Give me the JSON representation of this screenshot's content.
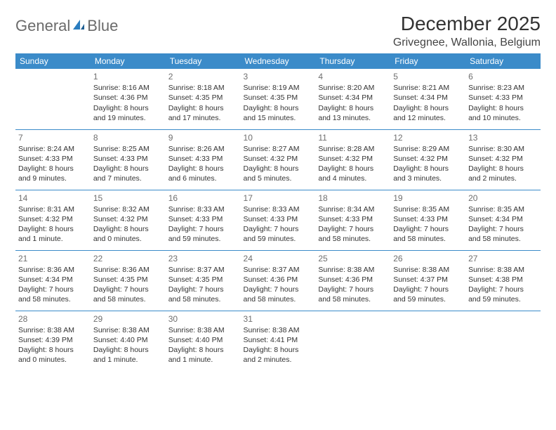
{
  "brand": {
    "word1": "General",
    "word2": "Blue"
  },
  "header": {
    "title": "December 2025",
    "location": "Grivegnee, Wallonia, Belgium"
  },
  "colors": {
    "header_bg": "#3b8bc9",
    "header_text": "#ffffff",
    "sep_line": "#3b8bc9",
    "logo_gray": "#6b6b6b",
    "logo_blue": "#2a7dbf"
  },
  "days": [
    "Sunday",
    "Monday",
    "Tuesday",
    "Wednesday",
    "Thursday",
    "Friday",
    "Saturday"
  ],
  "weeks": [
    [
      {
        "n": "",
        "l1": "",
        "l2": "",
        "l3": "",
        "l4": ""
      },
      {
        "n": "1",
        "l1": "Sunrise: 8:16 AM",
        "l2": "Sunset: 4:36 PM",
        "l3": "Daylight: 8 hours",
        "l4": "and 19 minutes."
      },
      {
        "n": "2",
        "l1": "Sunrise: 8:18 AM",
        "l2": "Sunset: 4:35 PM",
        "l3": "Daylight: 8 hours",
        "l4": "and 17 minutes."
      },
      {
        "n": "3",
        "l1": "Sunrise: 8:19 AM",
        "l2": "Sunset: 4:35 PM",
        "l3": "Daylight: 8 hours",
        "l4": "and 15 minutes."
      },
      {
        "n": "4",
        "l1": "Sunrise: 8:20 AM",
        "l2": "Sunset: 4:34 PM",
        "l3": "Daylight: 8 hours",
        "l4": "and 13 minutes."
      },
      {
        "n": "5",
        "l1": "Sunrise: 8:21 AM",
        "l2": "Sunset: 4:34 PM",
        "l3": "Daylight: 8 hours",
        "l4": "and 12 minutes."
      },
      {
        "n": "6",
        "l1": "Sunrise: 8:23 AM",
        "l2": "Sunset: 4:33 PM",
        "l3": "Daylight: 8 hours",
        "l4": "and 10 minutes."
      }
    ],
    [
      {
        "n": "7",
        "l1": "Sunrise: 8:24 AM",
        "l2": "Sunset: 4:33 PM",
        "l3": "Daylight: 8 hours",
        "l4": "and 9 minutes."
      },
      {
        "n": "8",
        "l1": "Sunrise: 8:25 AM",
        "l2": "Sunset: 4:33 PM",
        "l3": "Daylight: 8 hours",
        "l4": "and 7 minutes."
      },
      {
        "n": "9",
        "l1": "Sunrise: 8:26 AM",
        "l2": "Sunset: 4:33 PM",
        "l3": "Daylight: 8 hours",
        "l4": "and 6 minutes."
      },
      {
        "n": "10",
        "l1": "Sunrise: 8:27 AM",
        "l2": "Sunset: 4:32 PM",
        "l3": "Daylight: 8 hours",
        "l4": "and 5 minutes."
      },
      {
        "n": "11",
        "l1": "Sunrise: 8:28 AM",
        "l2": "Sunset: 4:32 PM",
        "l3": "Daylight: 8 hours",
        "l4": "and 4 minutes."
      },
      {
        "n": "12",
        "l1": "Sunrise: 8:29 AM",
        "l2": "Sunset: 4:32 PM",
        "l3": "Daylight: 8 hours",
        "l4": "and 3 minutes."
      },
      {
        "n": "13",
        "l1": "Sunrise: 8:30 AM",
        "l2": "Sunset: 4:32 PM",
        "l3": "Daylight: 8 hours",
        "l4": "and 2 minutes."
      }
    ],
    [
      {
        "n": "14",
        "l1": "Sunrise: 8:31 AM",
        "l2": "Sunset: 4:32 PM",
        "l3": "Daylight: 8 hours",
        "l4": "and 1 minute."
      },
      {
        "n": "15",
        "l1": "Sunrise: 8:32 AM",
        "l2": "Sunset: 4:32 PM",
        "l3": "Daylight: 8 hours",
        "l4": "and 0 minutes."
      },
      {
        "n": "16",
        "l1": "Sunrise: 8:33 AM",
        "l2": "Sunset: 4:33 PM",
        "l3": "Daylight: 7 hours",
        "l4": "and 59 minutes."
      },
      {
        "n": "17",
        "l1": "Sunrise: 8:33 AM",
        "l2": "Sunset: 4:33 PM",
        "l3": "Daylight: 7 hours",
        "l4": "and 59 minutes."
      },
      {
        "n": "18",
        "l1": "Sunrise: 8:34 AM",
        "l2": "Sunset: 4:33 PM",
        "l3": "Daylight: 7 hours",
        "l4": "and 58 minutes."
      },
      {
        "n": "19",
        "l1": "Sunrise: 8:35 AM",
        "l2": "Sunset: 4:33 PM",
        "l3": "Daylight: 7 hours",
        "l4": "and 58 minutes."
      },
      {
        "n": "20",
        "l1": "Sunrise: 8:35 AM",
        "l2": "Sunset: 4:34 PM",
        "l3": "Daylight: 7 hours",
        "l4": "and 58 minutes."
      }
    ],
    [
      {
        "n": "21",
        "l1": "Sunrise: 8:36 AM",
        "l2": "Sunset: 4:34 PM",
        "l3": "Daylight: 7 hours",
        "l4": "and 58 minutes."
      },
      {
        "n": "22",
        "l1": "Sunrise: 8:36 AM",
        "l2": "Sunset: 4:35 PM",
        "l3": "Daylight: 7 hours",
        "l4": "and 58 minutes."
      },
      {
        "n": "23",
        "l1": "Sunrise: 8:37 AM",
        "l2": "Sunset: 4:35 PM",
        "l3": "Daylight: 7 hours",
        "l4": "and 58 minutes."
      },
      {
        "n": "24",
        "l1": "Sunrise: 8:37 AM",
        "l2": "Sunset: 4:36 PM",
        "l3": "Daylight: 7 hours",
        "l4": "and 58 minutes."
      },
      {
        "n": "25",
        "l1": "Sunrise: 8:38 AM",
        "l2": "Sunset: 4:36 PM",
        "l3": "Daylight: 7 hours",
        "l4": "and 58 minutes."
      },
      {
        "n": "26",
        "l1": "Sunrise: 8:38 AM",
        "l2": "Sunset: 4:37 PM",
        "l3": "Daylight: 7 hours",
        "l4": "and 59 minutes."
      },
      {
        "n": "27",
        "l1": "Sunrise: 8:38 AM",
        "l2": "Sunset: 4:38 PM",
        "l3": "Daylight: 7 hours",
        "l4": "and 59 minutes."
      }
    ],
    [
      {
        "n": "28",
        "l1": "Sunrise: 8:38 AM",
        "l2": "Sunset: 4:39 PM",
        "l3": "Daylight: 8 hours",
        "l4": "and 0 minutes."
      },
      {
        "n": "29",
        "l1": "Sunrise: 8:38 AM",
        "l2": "Sunset: 4:40 PM",
        "l3": "Daylight: 8 hours",
        "l4": "and 1 minute."
      },
      {
        "n": "30",
        "l1": "Sunrise: 8:38 AM",
        "l2": "Sunset: 4:40 PM",
        "l3": "Daylight: 8 hours",
        "l4": "and 1 minute."
      },
      {
        "n": "31",
        "l1": "Sunrise: 8:38 AM",
        "l2": "Sunset: 4:41 PM",
        "l3": "Daylight: 8 hours",
        "l4": "and 2 minutes."
      },
      {
        "n": "",
        "l1": "",
        "l2": "",
        "l3": "",
        "l4": ""
      },
      {
        "n": "",
        "l1": "",
        "l2": "",
        "l3": "",
        "l4": ""
      },
      {
        "n": "",
        "l1": "",
        "l2": "",
        "l3": "",
        "l4": ""
      }
    ]
  ]
}
